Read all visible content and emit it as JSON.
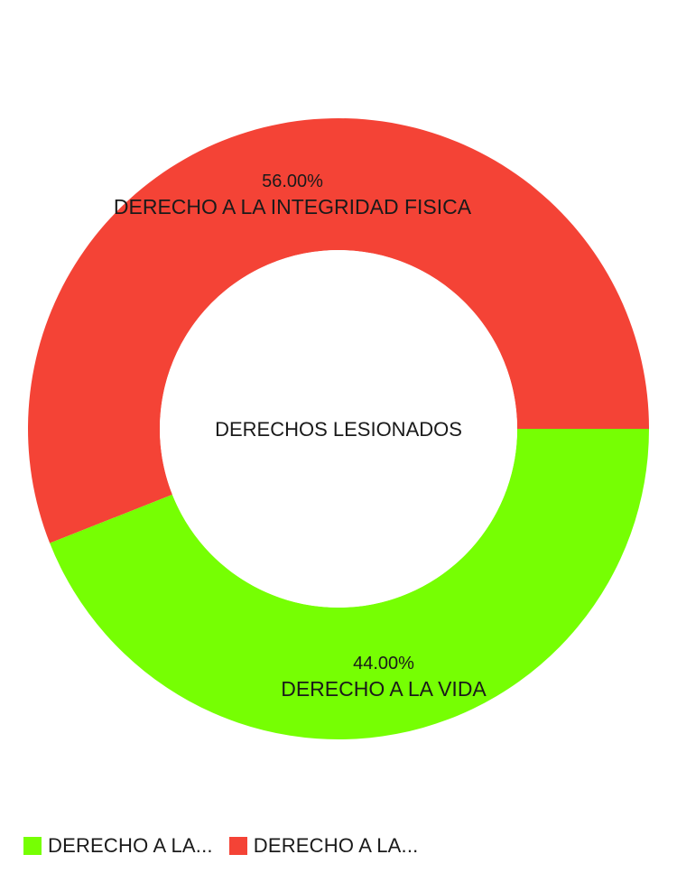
{
  "chart_data": {
    "type": "pie",
    "variant": "donut",
    "center_text": "DERECHOS LESIONADOS",
    "slices": [
      {
        "label": "DERECHO A LA INTEGRIDAD FISICA",
        "value": 56.0,
        "percent_label": "56.00%",
        "color": "#f44336"
      },
      {
        "label": "DERECHO A LA VIDA",
        "value": 44.0,
        "percent_label": "44.00%",
        "color": "#76ff03"
      }
    ],
    "legend": {
      "placement": "bottom-left",
      "items": [
        {
          "label": "DERECHO A LA...",
          "color": "#76ff03"
        },
        {
          "label": "DERECHO A LA...",
          "color": "#f44336"
        }
      ]
    }
  }
}
